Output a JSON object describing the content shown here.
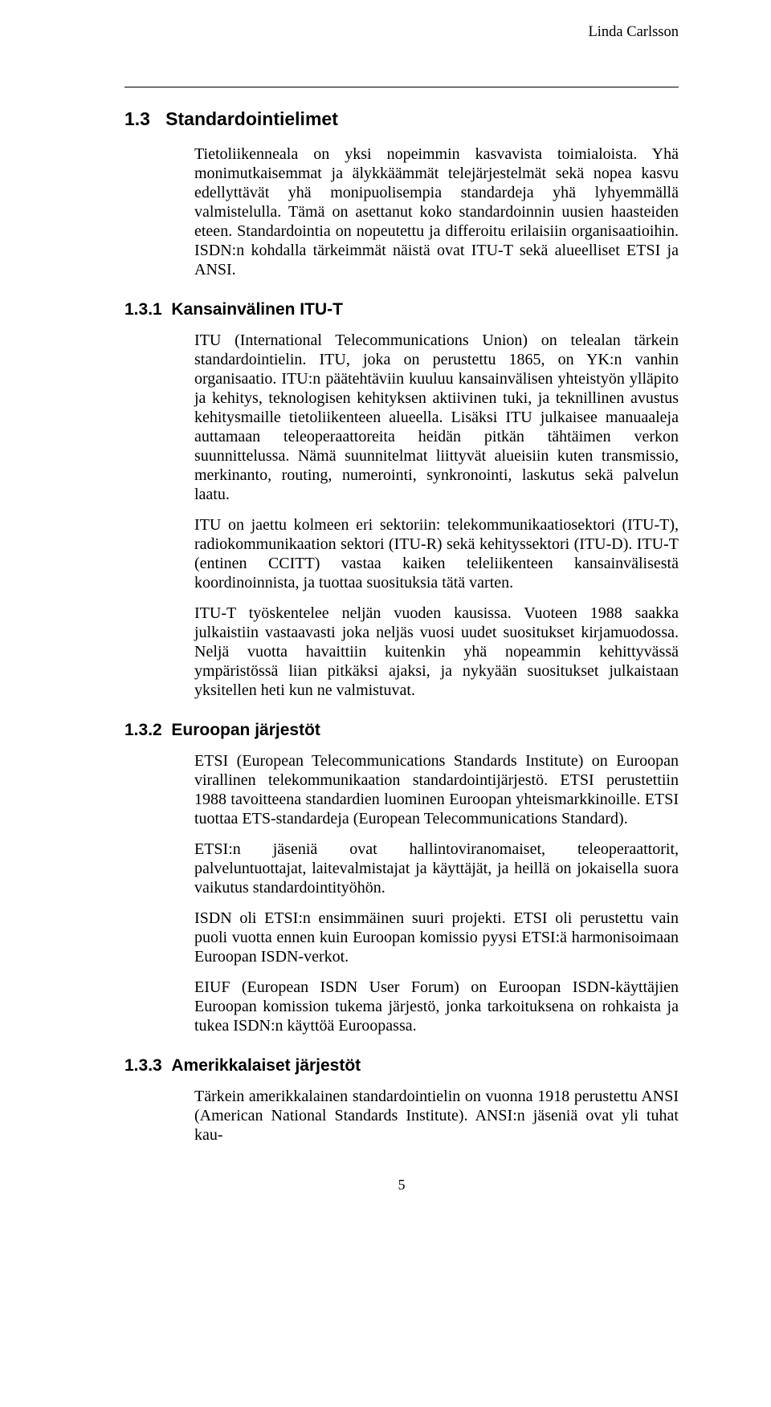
{
  "running_head": "Linda Carlsson",
  "page_number": "5",
  "section_1_3": {
    "number": "1.3",
    "title": "Standardointielimet",
    "intro": "Tietoliikenneala on yksi nopeimmin kasvavista toimialoista. Yhä monimutkaisemmat ja älykkäämmät telejärjestelmät sekä nopea kasvu edellyttävät yhä monipuolisempia standardeja yhä lyhyemmällä valmistelulla. Tämä on asettanut koko standardoinnin uusien haasteiden eteen. Standardointia on nopeutettu ja differoitu erilaisiin organisaatioihin. ISDN:n kohdalla tärkeimmät näistä ovat ITU-T sekä alueelliset ETSI ja ANSI."
  },
  "section_1_3_1": {
    "number": "1.3.1",
    "title": "Kansainvälinen ITU-T",
    "p1": "ITU (International Telecommunications Union) on telealan tärkein standardointielin. ITU, joka on perustettu 1865, on YK:n vanhin organisaatio. ITU:n päätehtäviin kuuluu kansainvälisen yhteistyön ylläpito ja kehitys, teknologisen kehityksen aktiivinen tuki, ja teknillinen avustus kehitysmaille tietoliikenteen alueella. Lisäksi ITU julkaisee manuaaleja auttamaan teleoperaattoreita heidän pitkän tähtäimen verkon suunnittelussa. Nämä suunnitelmat liittyvät alueisiin kuten transmissio, merkinanto, routing, numerointi, synkronointi, laskutus sekä palvelun laatu.",
    "p2": "ITU on jaettu kolmeen eri sektoriin: telekommunikaatiosektori (ITU-T), radiokommunikaation sektori (ITU-R) sekä kehityssektori (ITU-D). ITU-T (entinen CCITT) vastaa kaiken teleliikenteen kansainvälisestä koordinoinnista, ja tuottaa suosituksia tätä varten.",
    "p3": "ITU-T työskentelee neljän vuoden kausissa. Vuoteen 1988 saakka julkaistiin vastaavasti joka neljäs vuosi uudet suositukset kirjamuodossa. Neljä vuotta havaittiin kuitenkin yhä nopeammin kehittyvässä ympäristössä liian pitkäksi ajaksi, ja nykyään suositukset julkaistaan yksitellen heti kun ne valmistuvat."
  },
  "section_1_3_2": {
    "number": "1.3.2",
    "title": "Euroopan järjestöt",
    "p1": "ETSI (European Telecommunications Standards Institute) on Euroopan virallinen telekommunikaation standardointijärjestö. ETSI perustettiin 1988 tavoitteena standardien luominen Euroopan yhteismarkkinoille. ETSI tuottaa ETS-standardeja (European Telecommunications Standard).",
    "p2": "ETSI:n jäseniä ovat hallintoviranomaiset, teleoperaattorit, palveluntuottajat, laitevalmistajat ja käyttäjät, ja heillä on jokaisella suora vaikutus standardointityöhön.",
    "p3": "ISDN oli ETSI:n ensimmäinen suuri projekti. ETSI oli perustettu vain puoli vuotta ennen kuin Euroopan komissio pyysi ETSI:ä harmonisoimaan Euroopan ISDN-verkot.",
    "p4": "EIUF (European ISDN User Forum) on Euroopan ISDN-käyttäjien Euroopan komission tukema järjestö, jonka tarkoituksena on rohkaista ja tukea ISDN:n käyttöä Euroopassa."
  },
  "section_1_3_3": {
    "number": "1.3.3",
    "title": "Amerikkalaiset järjestöt",
    "p1": "Tärkein amerikkalainen standardointielin on vuonna 1918 perustettu ANSI (American National Standards Institute). ANSI:n jäseniä ovat yli tuhat kau-"
  }
}
